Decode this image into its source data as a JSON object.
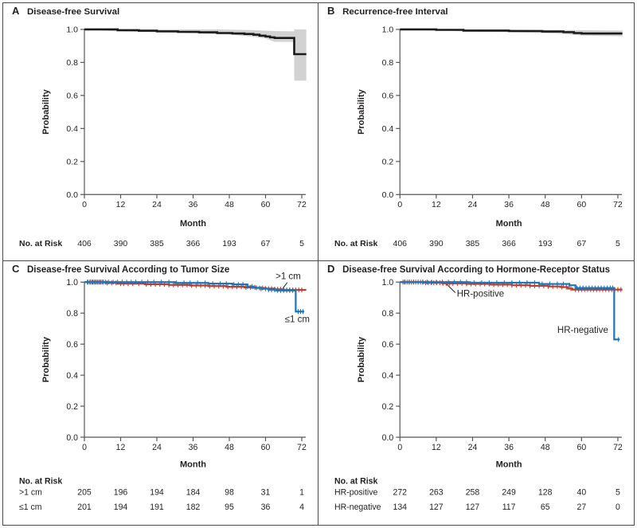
{
  "figure": {
    "kind": "kaplan-meier-four-panel",
    "background": "#ffffff",
    "border_color": "#4b4b4b"
  },
  "colors": {
    "curve_black": "#1a1a1a",
    "curve_blue": "#1e74b5",
    "curve_red": "#c13b2e",
    "ci_band": "#d2d2d2",
    "axis": "#55565a",
    "text": "#231f20"
  },
  "axes": {
    "xlabel": "Month",
    "ylabel": "Probability",
    "x_ticks": [
      0,
      12,
      24,
      36,
      48,
      60,
      72
    ],
    "y_ticks": [
      1.0,
      0.8,
      0.6,
      0.4,
      0.2,
      0.0
    ],
    "y_tick_labels": [
      "1.0",
      "0.8",
      "0.6",
      "0.4",
      "0.2",
      "0.0"
    ],
    "xlim": [
      0,
      73.5
    ],
    "ylim": [
      0.0,
      1.0
    ],
    "grid": false
  },
  "risk_table_header": "No. at Risk",
  "chart_data": [
    {
      "id": "A",
      "letter": "A",
      "title": "Disease-free Survival",
      "type": "line",
      "risk_rows": [
        {
          "label": "",
          "values": [
            "406",
            "390",
            "385",
            "366",
            "193",
            "67",
            "5"
          ]
        }
      ],
      "series": [
        {
          "name": "disease-free-survival",
          "color": "curve_black",
          "width": 2.6,
          "steps": [
            [
              0,
              1.0
            ],
            [
              11,
              1.0
            ],
            [
              11,
              0.995
            ],
            [
              18,
              0.995
            ],
            [
              18,
              0.992
            ],
            [
              24,
              0.992
            ],
            [
              24,
              0.988
            ],
            [
              31,
              0.988
            ],
            [
              31,
              0.985
            ],
            [
              38,
              0.985
            ],
            [
              38,
              0.982
            ],
            [
              44,
              0.982
            ],
            [
              44,
              0.978
            ],
            [
              49,
              0.978
            ],
            [
              49,
              0.975
            ],
            [
              53,
              0.975
            ],
            [
              53,
              0.972
            ],
            [
              56,
              0.972
            ],
            [
              56,
              0.968
            ],
            [
              58,
              0.968
            ],
            [
              58,
              0.962
            ],
            [
              60,
              0.962
            ],
            [
              60,
              0.957
            ],
            [
              61.5,
              0.957
            ],
            [
              61.5,
              0.952
            ],
            [
              63,
              0.952
            ],
            [
              63,
              0.948
            ],
            [
              69.5,
              0.948
            ],
            [
              69.5,
              0.85
            ],
            [
              73.5,
              0.85
            ]
          ],
          "band": {
            "upper": [
              [
                0,
                1.0
              ],
              [
                44,
                1.0
              ],
              [
                56,
                0.995
              ],
              [
                63,
                0.99
              ],
              [
                69.5,
                0.988
              ],
              [
                69.5,
                1.0
              ],
              [
                73.5,
                1.0
              ]
            ],
            "lower": [
              [
                0,
                1.0
              ],
              [
                11,
                0.988
              ],
              [
                24,
                0.982
              ],
              [
                38,
                0.975
              ],
              [
                49,
                0.968
              ],
              [
                56,
                0.955
              ],
              [
                60,
                0.945
              ],
              [
                63,
                0.925
              ],
              [
                69.5,
                0.925
              ],
              [
                69.5,
                0.69
              ],
              [
                73.5,
                0.69
              ]
            ]
          },
          "censor_months": []
        }
      ],
      "annotations": []
    },
    {
      "id": "B",
      "letter": "B",
      "title": "Recurrence-free Interval",
      "type": "line",
      "risk_rows": [
        {
          "label": "",
          "values": [
            "406",
            "390",
            "385",
            "366",
            "193",
            "67",
            "5"
          ]
        }
      ],
      "series": [
        {
          "name": "recurrence-free-interval",
          "color": "curve_black",
          "width": 2.6,
          "steps": [
            [
              0,
              1.0
            ],
            [
              12,
              1.0
            ],
            [
              12,
              0.997
            ],
            [
              21,
              0.997
            ],
            [
              21,
              0.993
            ],
            [
              36,
              0.993
            ],
            [
              36,
              0.99
            ],
            [
              47,
              0.99
            ],
            [
              47,
              0.987
            ],
            [
              54,
              0.987
            ],
            [
              54,
              0.983
            ],
            [
              57.5,
              0.983
            ],
            [
              57.5,
              0.978
            ],
            [
              60,
              0.978
            ],
            [
              60,
              0.975
            ],
            [
              73.5,
              0.975
            ]
          ],
          "band": {
            "upper": [
              [
                0,
                1.0
              ],
              [
                36,
                1.0
              ],
              [
                60,
                0.995
              ],
              [
                73.5,
                0.993
              ]
            ],
            "lower": [
              [
                0,
                1.0
              ],
              [
                12,
                0.993
              ],
              [
                21,
                0.988
              ],
              [
                36,
                0.983
              ],
              [
                47,
                0.978
              ],
              [
                54,
                0.972
              ],
              [
                60,
                0.963
              ],
              [
                73.5,
                0.958
              ]
            ]
          },
          "censor_months": []
        }
      ],
      "annotations": []
    },
    {
      "id": "C",
      "letter": "C",
      "title": "Disease-free Survival According to Tumor Size",
      "type": "line",
      "risk_rows": [
        {
          "label": ">1 cm",
          "values": [
            "205",
            "196",
            "194",
            "184",
            "98",
            "31",
            "1"
          ]
        },
        {
          "label": "≤1 cm",
          "values": [
            "201",
            "194",
            "191",
            "182",
            "95",
            "36",
            "4"
          ]
        }
      ],
      "series": [
        {
          "name": "tumor-gt-1cm",
          "legend": ">1 cm",
          "color": "curve_red",
          "width": 2.2,
          "steps": [
            [
              0,
              1.0
            ],
            [
              7,
              1.0
            ],
            [
              7,
              0.995
            ],
            [
              11,
              0.995
            ],
            [
              11,
              0.99
            ],
            [
              20,
              0.99
            ],
            [
              20,
              0.986
            ],
            [
              28,
              0.986
            ],
            [
              28,
              0.982
            ],
            [
              35,
              0.982
            ],
            [
              35,
              0.978
            ],
            [
              41,
              0.978
            ],
            [
              41,
              0.974
            ],
            [
              47,
              0.974
            ],
            [
              47,
              0.97
            ],
            [
              53,
              0.97
            ],
            [
              53,
              0.966
            ],
            [
              57,
              0.966
            ],
            [
              57,
              0.962
            ],
            [
              60,
              0.962
            ],
            [
              60,
              0.958
            ],
            [
              63,
              0.958
            ],
            [
              63,
              0.954
            ],
            [
              66,
              0.954
            ],
            [
              66,
              0.95
            ],
            [
              73.5,
              0.95
            ]
          ],
          "censor_months": [
            1,
            1.8,
            2.5,
            3.2,
            4,
            4.8,
            5.5,
            6.3,
            7.5,
            9,
            10.5,
            12,
            13,
            14.5,
            16,
            18,
            20.5,
            22,
            23.5,
            25,
            26.5,
            28,
            29.5,
            31,
            32.5,
            34,
            35.5,
            37,
            38.5,
            40,
            41.5,
            43,
            44.5,
            46,
            47.5,
            49,
            50.5,
            52,
            53.5,
            55,
            56.5,
            58,
            59,
            60,
            61,
            62,
            63,
            64,
            65,
            66,
            67,
            68,
            69,
            70,
            71,
            72
          ]
        },
        {
          "name": "tumor-le-1cm",
          "legend": "≤1 cm",
          "color": "curve_blue",
          "width": 2.2,
          "steps": [
            [
              0,
              1.0
            ],
            [
              30,
              1.0
            ],
            [
              30,
              0.995
            ],
            [
              41,
              0.995
            ],
            [
              41,
              0.99
            ],
            [
              49,
              0.99
            ],
            [
              49,
              0.985
            ],
            [
              54,
              0.985
            ],
            [
              54,
              0.972
            ],
            [
              56,
              0.972
            ],
            [
              56,
              0.963
            ],
            [
              58.5,
              0.963
            ],
            [
              58.5,
              0.957
            ],
            [
              61,
              0.957
            ],
            [
              61,
              0.951
            ],
            [
              63.5,
              0.951
            ],
            [
              63.5,
              0.946
            ],
            [
              70,
              0.946
            ],
            [
              70,
              0.81
            ],
            [
              72.8,
              0.81
            ]
          ],
          "censor_months": [
            1.2,
            2,
            2.8,
            3.6,
            4.4,
            5.2,
            6,
            7,
            8,
            9.5,
            11,
            12.5,
            14,
            15.5,
            17,
            19,
            21,
            23,
            25.5,
            28,
            30.5,
            33,
            35,
            37.5,
            40,
            42.5,
            45,
            47,
            49.5,
            51,
            52.5,
            54,
            55.5,
            57,
            58.5,
            60,
            61,
            62,
            63,
            64,
            65,
            66,
            67,
            68,
            69,
            70.8,
            71.6,
            72.4
          ]
        }
      ],
      "annotations": [
        {
          "text": ">1 cm",
          "month": 67.5,
          "value": 1.018,
          "anchor": "middle",
          "leader": [
            [
              67.2,
              0.998
            ],
            [
              65.8,
              0.962
            ]
          ]
        },
        {
          "text": "≤1 cm",
          "month": 70.5,
          "value": 0.742,
          "anchor": "middle"
        }
      ]
    },
    {
      "id": "D",
      "letter": "D",
      "title": "Disease-free Survival According to Hormone-Receptor Status",
      "type": "line",
      "risk_rows": [
        {
          "label": "HR-positive",
          "values": [
            "272",
            "263",
            "258",
            "249",
            "128",
            "40",
            "5"
          ]
        },
        {
          "label": "HR-negative",
          "values": [
            "134",
            "127",
            "127",
            "117",
            "65",
            "27",
            "0"
          ]
        }
      ],
      "series": [
        {
          "name": "hr-positive",
          "legend": "HR-positive",
          "color": "curve_red",
          "width": 2.2,
          "steps": [
            [
              0,
              1.0
            ],
            [
              8,
              1.0
            ],
            [
              8,
              0.996
            ],
            [
              14,
              0.996
            ],
            [
              14,
              0.992
            ],
            [
              22,
              0.992
            ],
            [
              22,
              0.988
            ],
            [
              30,
              0.988
            ],
            [
              30,
              0.984
            ],
            [
              37,
              0.984
            ],
            [
              37,
              0.98
            ],
            [
              43,
              0.98
            ],
            [
              43,
              0.976
            ],
            [
              49,
              0.976
            ],
            [
              49,
              0.972
            ],
            [
              53,
              0.972
            ],
            [
              53,
              0.968
            ],
            [
              55.5,
              0.968
            ],
            [
              55.5,
              0.958
            ],
            [
              57,
              0.958
            ],
            [
              57,
              0.952
            ],
            [
              73.5,
              0.952
            ]
          ],
          "censor_months": [
            1,
            1.7,
            2.4,
            3.1,
            3.8,
            4.5,
            5.2,
            6,
            6.8,
            7.6,
            8.5,
            9.4,
            10.3,
            11.2,
            12.2,
            13.2,
            14.2,
            15.3,
            16.4,
            17.5,
            19,
            20.5,
            22,
            23.5,
            25,
            26.5,
            28,
            29.5,
            31,
            32.5,
            34,
            35.5,
            37,
            38.5,
            40,
            41.5,
            43,
            44.5,
            46,
            47.5,
            49,
            50.5,
            52,
            53.5,
            55,
            56.5,
            58,
            59,
            60,
            61,
            62,
            63,
            64,
            65,
            66,
            67,
            68,
            69,
            70,
            71,
            72,
            73
          ]
        },
        {
          "name": "hr-negative",
          "legend": "HR-negative",
          "color": "curve_blue",
          "width": 2.2,
          "steps": [
            [
              0,
              1.0
            ],
            [
              23,
              1.0
            ],
            [
              23,
              0.996
            ],
            [
              46,
              0.996
            ],
            [
              46,
              0.988
            ],
            [
              56,
              0.988
            ],
            [
              56,
              0.98
            ],
            [
              58,
              0.98
            ],
            [
              58,
              0.962
            ],
            [
              70.8,
              0.962
            ],
            [
              70.8,
              0.63
            ],
            [
              72.6,
              0.63
            ]
          ],
          "censor_months": [
            1.5,
            3,
            4.5,
            6,
            7.5,
            9,
            10.5,
            12,
            14,
            16,
            18,
            20,
            22,
            24.5,
            27,
            29.5,
            32,
            34.5,
            37,
            39.5,
            42,
            44.5,
            47,
            49.5,
            52,
            54,
            56,
            58.5,
            59.5,
            60.5,
            61.5,
            62.5,
            63.5,
            64.5,
            65.5,
            66.5,
            67.5,
            68.5,
            69.5,
            70.3,
            72.2
          ]
        }
      ],
      "annotations": [
        {
          "text": "HR-positive",
          "month": 18.8,
          "value": 0.905,
          "anchor": "start",
          "leader": [
            [
              15.5,
              0.985
            ],
            [
              18.3,
              0.932
            ]
          ]
        },
        {
          "text": "HR-negative",
          "month": 52,
          "value": 0.672,
          "anchor": "start"
        }
      ]
    }
  ]
}
